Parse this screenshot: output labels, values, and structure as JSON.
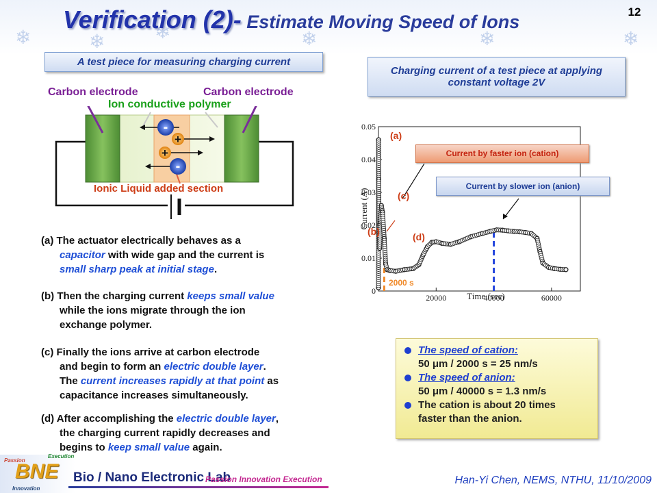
{
  "header": {
    "title_main": "Verification (2)-",
    "title_sub": " Estimate Moving Speed of Ions",
    "page_number": "12"
  },
  "left_panel": {
    "box_title": "A test piece for measuring charging current",
    "electrode_left": "Carbon electrode",
    "electrode_right": "Carbon electrode",
    "polymer_label": "Ion conductive polymer",
    "ionic_liquid_label": "Ionic Liquid added section",
    "minus_sign": "-",
    "plus_sign": "+"
  },
  "descriptions": {
    "a": {
      "prefix": "(a)  The  actuator  electrically  behaves  as  a",
      "t1": "capacitor",
      "t2": " with wide gap and the current is",
      "t3": "small sharp peak at initial stage",
      "t4": "."
    },
    "b": {
      "prefix": "(b) Then the charging current ",
      "t1": "keeps small value",
      "t2": "while  the  ions  migrate  through  the  ion",
      "t3": "exchange polymer."
    },
    "c": {
      "line1": "(c)  Finally  the  ions  arrive  at  carbon  electrode",
      "t1": "and begin to form an ",
      "t2": "electric double layer",
      "t3": ".",
      "t4": "The ",
      "t5": "current increases rapidly at that point",
      "t6": " as",
      "t7": "capacitance increases simultaneously."
    },
    "d": {
      "prefix": "(d) After accomplishing the ",
      "t1": "electric double layer",
      "t2": ",",
      "t3": "the  charging  current  rapidly  decreases  and",
      "t4": "begins to ",
      "t5": "keep small value",
      "t6": " again."
    }
  },
  "right_panel": {
    "box_title": "Charging current of a test piece at applying constant voltage 2V",
    "label_a": "(a)",
    "label_b": "(b)",
    "label_c": "(c)",
    "label_d": "(d)",
    "cation_box": "Current by faster ion (cation)",
    "anion_box": "Current by slower ion (anion)",
    "marker_2000": "2000 s"
  },
  "chart_data": {
    "type": "scatter",
    "title": "",
    "xlabel": "Time (sec)",
    "ylabel": "Current (A)",
    "xlim": [
      0,
      70000
    ],
    "ylim": [
      0,
      0.05
    ],
    "xticks": [
      "20000",
      "40000",
      "60000"
    ],
    "yticks": [
      "0",
      "0.01",
      "0.02",
      "0.03",
      "0.04",
      "0.05"
    ],
    "series": [
      {
        "x": [
          0,
          50,
          100,
          200,
          400,
          700,
          1000,
          1400,
          2000,
          2500,
          3000,
          4000,
          6000,
          9000,
          12000,
          14000,
          15500,
          17000,
          18500,
          20000,
          22000,
          25000,
          28000,
          32000,
          36000,
          39000,
          41000,
          43000,
          45000,
          47000,
          49000,
          51000,
          53000,
          55000,
          56000,
          57000,
          59000,
          61000,
          63000,
          65000
        ],
        "y": [
          0.001,
          0.046,
          0.034,
          0.02,
          0.013,
          0.021,
          0.026,
          0.024,
          0.016,
          0.0082,
          0.0065,
          0.0062,
          0.006,
          0.0065,
          0.0068,
          0.008,
          0.011,
          0.0135,
          0.0148,
          0.015,
          0.0145,
          0.0142,
          0.015,
          0.0165,
          0.0175,
          0.0182,
          0.0186,
          0.0185,
          0.0183,
          0.0181,
          0.018,
          0.0178,
          0.0175,
          0.016,
          0.012,
          0.0085,
          0.0072,
          0.0068,
          0.0066,
          0.0065
        ]
      }
    ],
    "vlines": [
      {
        "x": 2000,
        "color": "#f08a2a"
      },
      {
        "x": 40000,
        "color": "#2244dd"
      }
    ]
  },
  "speed_box": {
    "item1_head": "The speed of cation:",
    "item1_value": "50 μm / 2000 s = 25 nm/s",
    "item2_head": "The speed of anion:",
    "item2_value": "50 μm / 40000 s = 1.3 nm/s",
    "item3_line1": "The cation is about 20 times",
    "item3_line2": "faster than the anion."
  },
  "footer": {
    "logo_bne": "BNE",
    "logo_passion": "Passion",
    "logo_innovation": "Innovation",
    "logo_execution": "Execution",
    "lab_name": "Bio / Nano Electronic Lab",
    "slogan": "Passion Innovation Execution",
    "author": "Han-Yi Chen, NEMS, NTHU, 11/10/2009"
  },
  "colors": {
    "title_blue": "#2233aa",
    "electrode_green": "#6ea84a",
    "ionic_orange": "#f7c79a",
    "purple": "#7a1f95",
    "accent_blue": "#1f4fd6"
  }
}
